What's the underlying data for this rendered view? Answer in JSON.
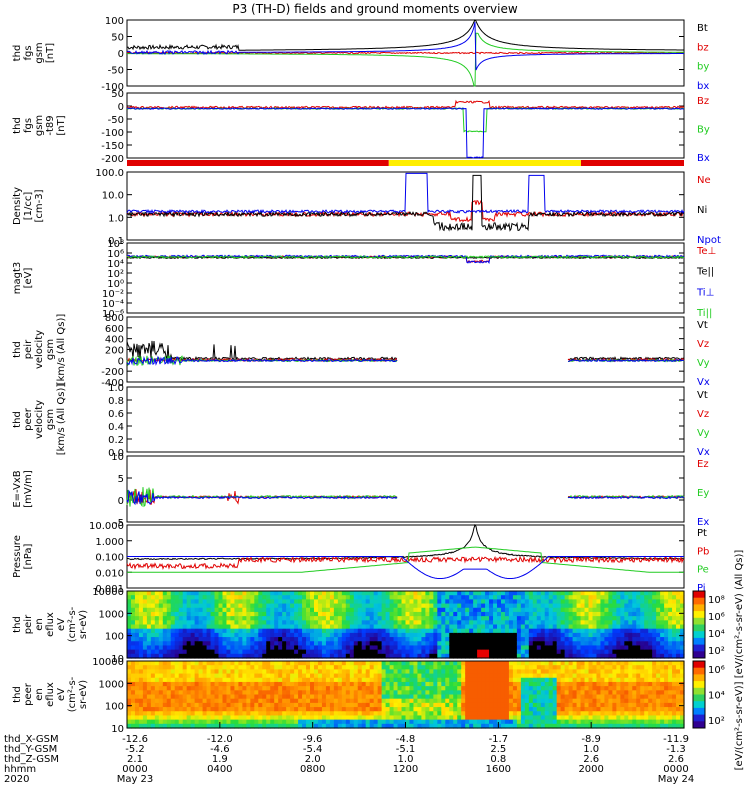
{
  "title": "P3 (TH-D) fields and ground moments overview",
  "colors": {
    "black": "#000000",
    "red": "#e00000",
    "green": "#22cc22",
    "blue": "#0000ee",
    "yellow": "#ffee00"
  },
  "chart_data": [
    {
      "type": "line",
      "name": "fgs",
      "ylabel": [
        "thd",
        "fgs",
        "gsm",
        "[nT]"
      ],
      "yticks": [
        "100",
        "50",
        "0",
        "-50",
        "-100"
      ],
      "ylim": [
        -100,
        100
      ],
      "legend": [
        {
          "label": "Bt",
          "color": "black"
        },
        {
          "label": "bz",
          "color": "red"
        },
        {
          "label": "by",
          "color": "green"
        },
        {
          "label": "bx",
          "color": "blue"
        }
      ]
    },
    {
      "type": "line",
      "name": "fgs-t89",
      "ylabel": [
        "thd",
        "fgs",
        "gsm",
        "-t89",
        "[nT]"
      ],
      "yticks": [
        "50",
        "0",
        "-50",
        "-100",
        "-150",
        "-200"
      ],
      "ylim": [
        -220,
        50
      ],
      "legend": [
        {
          "label": "Bz",
          "color": "red"
        },
        {
          "label": "By",
          "color": "green"
        },
        {
          "label": "Bx",
          "color": "blue"
        }
      ]
    },
    {
      "type": "bar",
      "name": "mode-bar",
      "segments": [
        {
          "from": 0,
          "to": 0.47,
          "color": "red"
        },
        {
          "from": 0.47,
          "to": 0.815,
          "color": "yellow"
        },
        {
          "from": 0.815,
          "to": 1,
          "color": "red"
        }
      ]
    },
    {
      "type": "line",
      "name": "density",
      "ylabel": [
        "Density",
        "[1/cc]",
        "[cm-3]"
      ],
      "yticks": [
        "100.0",
        "10.0",
        "1.0",
        "0.1"
      ],
      "log": true,
      "legend": [
        {
          "label": "Ne",
          "color": "red"
        },
        {
          "label": "Ni",
          "color": "black"
        },
        {
          "label": "Npot",
          "color": "blue"
        }
      ]
    },
    {
      "type": "line",
      "name": "temperature",
      "ylabel": [
        "magt3",
        "[eV]"
      ],
      "yticks": [
        "10⁸",
        "10⁶",
        "10⁴",
        "10²",
        "10⁰",
        "10⁻²",
        "10⁻⁴",
        "10⁻⁶"
      ],
      "log": true,
      "legend": [
        {
          "label": "Te⊥",
          "color": "red"
        },
        {
          "label": "Te||",
          "color": "black"
        },
        {
          "label": "Ti⊥",
          "color": "blue"
        },
        {
          "label": "Ti||",
          "color": "green"
        }
      ]
    },
    {
      "type": "line",
      "name": "peir-velocity",
      "ylabel": [
        "thd",
        "peir",
        "velocity",
        "gsm",
        "[km/s (All Qs)]"
      ],
      "yticks": [
        "800",
        "600",
        "400",
        "200",
        "0",
        "-200",
        "-400"
      ],
      "ylim": [
        -400,
        800
      ],
      "legend": [
        {
          "label": "Vt",
          "color": "black"
        },
        {
          "label": "Vz",
          "color": "red"
        },
        {
          "label": "Vy",
          "color": "green"
        },
        {
          "label": "Vx",
          "color": "blue"
        }
      ]
    },
    {
      "type": "line",
      "name": "peer-velocity",
      "ylabel": [
        "thd",
        "peer",
        "velocity",
        "gsm",
        "[km/s (All Qs)]"
      ],
      "yticks": [
        "1.0",
        "0.8",
        "0.6",
        "0.4",
        "0.2",
        "0.0"
      ],
      "ylim": [
        0,
        1
      ],
      "legend": [
        {
          "label": "Vt",
          "color": "black"
        },
        {
          "label": "Vz",
          "color": "red"
        },
        {
          "label": "Vy",
          "color": "green"
        },
        {
          "label": "Vx",
          "color": "blue"
        }
      ]
    },
    {
      "type": "line",
      "name": "efield",
      "ylabel": [
        "E=-VxB",
        "[mV/m]"
      ],
      "yticks": [
        "10",
        "5",
        "0",
        "-5"
      ],
      "ylim": [
        -6,
        10
      ],
      "legend": [
        {
          "label": "Ez",
          "color": "red"
        },
        {
          "label": "Ey",
          "color": "green"
        },
        {
          "label": "Ex",
          "color": "blue"
        }
      ]
    },
    {
      "type": "line",
      "name": "pressure",
      "ylabel": [
        "Pressure",
        "[nPa]"
      ],
      "yticks": [
        "10.000",
        "1.000",
        "0.100",
        "0.010",
        "0.001"
      ],
      "log": true,
      "legend": [
        {
          "label": "Pt",
          "color": "black"
        },
        {
          "label": "Pb",
          "color": "red"
        },
        {
          "label": "Pe",
          "color": "green"
        },
        {
          "label": "Pi",
          "color": "blue"
        }
      ]
    },
    {
      "type": "heatmap",
      "name": "peir-spectrogram",
      "ylabel": [
        "thd",
        "peir",
        "en",
        "eflux",
        "eV",
        "(cm²-s-",
        "sr-eV)"
      ],
      "yticks": [
        "10000",
        "1000",
        "100",
        "10"
      ]
    },
    {
      "type": "heatmap",
      "name": "peer-spectrogram",
      "ylabel": [
        "thd",
        "peer",
        "en",
        "eflux",
        "eV",
        "(cm²-s-",
        "sr-eV)"
      ],
      "yticks": [
        "10000",
        "1000",
        "100",
        "10"
      ]
    }
  ],
  "colorbar": {
    "label": "[eV/(cm²-s-sr-eV)] [eV/(cm²-s-sr-eV) (All Qs)]",
    "ticks_top": [
      "10⁸",
      "10⁶",
      "10⁴",
      "10²"
    ],
    "ticks_bottom": [
      "10⁶",
      "10⁴",
      "10²"
    ]
  },
  "xaxis": {
    "rows": [
      {
        "label": "thd_X-GSM",
        "values": [
          "-12.6",
          "-12.0",
          "-9.6",
          "-4.8",
          "-1.7",
          "-8.9",
          "-11.9"
        ]
      },
      {
        "label": "thd_Y-GSM",
        "values": [
          "-5.2",
          "-4.6",
          "-5.4",
          "-5.1",
          "2.5",
          "1.0",
          "-1.3"
        ]
      },
      {
        "label": "thd_Z-GSM",
        "values": [
          "2.1",
          "1.9",
          "2.0",
          "1.0",
          "0.8",
          "2.6",
          "2.6"
        ]
      },
      {
        "label": "hhmm",
        "values": [
          "0000",
          "0400",
          "0800",
          "1200",
          "1600",
          "2000",
          "0000"
        ]
      },
      {
        "label": "2020",
        "values": [
          "May 23",
          "",
          "",
          "",
          "",
          "",
          "May 24"
        ]
      }
    ]
  }
}
